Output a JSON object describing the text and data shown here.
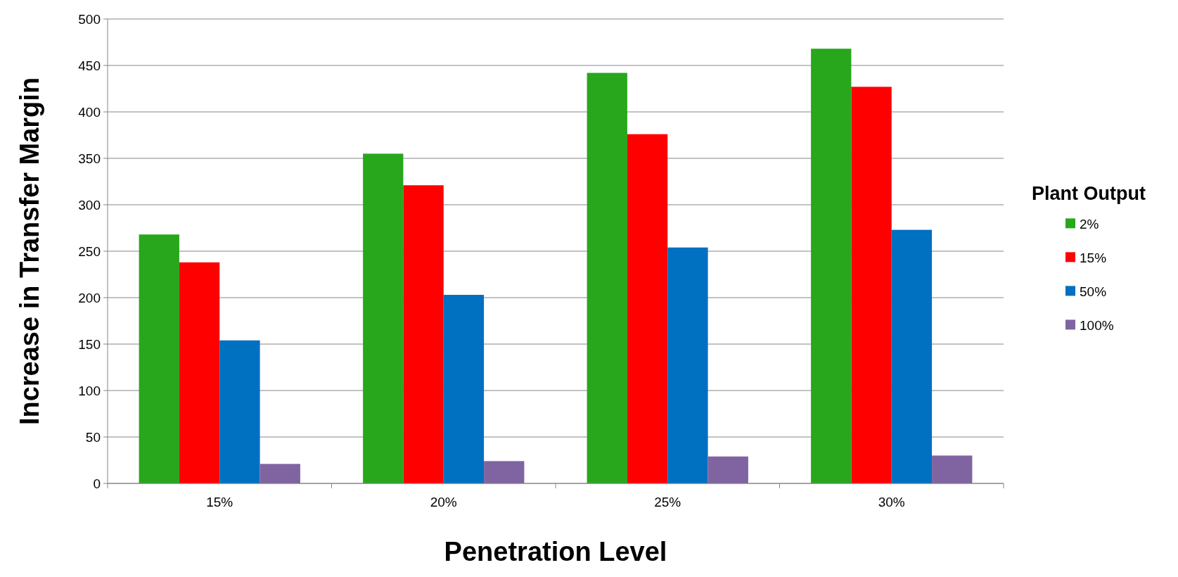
{
  "chart_data": {
    "type": "bar",
    "xlabel": "Penetration Level",
    "ylabel": "Increase in Transfer Margin",
    "legend_title": "Plant Output",
    "categories": [
      "15%",
      "20%",
      "25%",
      "30%"
    ],
    "series": [
      {
        "name": "2%",
        "color": "#28a71c",
        "values": [
          268,
          355,
          442,
          468
        ]
      },
      {
        "name": "15%",
        "color": "#ff0000",
        "values": [
          238,
          321,
          376,
          427
        ]
      },
      {
        "name": "50%",
        "color": "#0070c0",
        "values": [
          154,
          203,
          254,
          273
        ]
      },
      {
        "name": "100%",
        "color": "#8064a2",
        "values": [
          21,
          24,
          29,
          30
        ]
      }
    ],
    "ylim": [
      0,
      500
    ],
    "yticks": [
      0,
      50,
      100,
      150,
      200,
      250,
      300,
      350,
      400,
      450,
      500
    ],
    "grid": "y",
    "legend": "right"
  }
}
